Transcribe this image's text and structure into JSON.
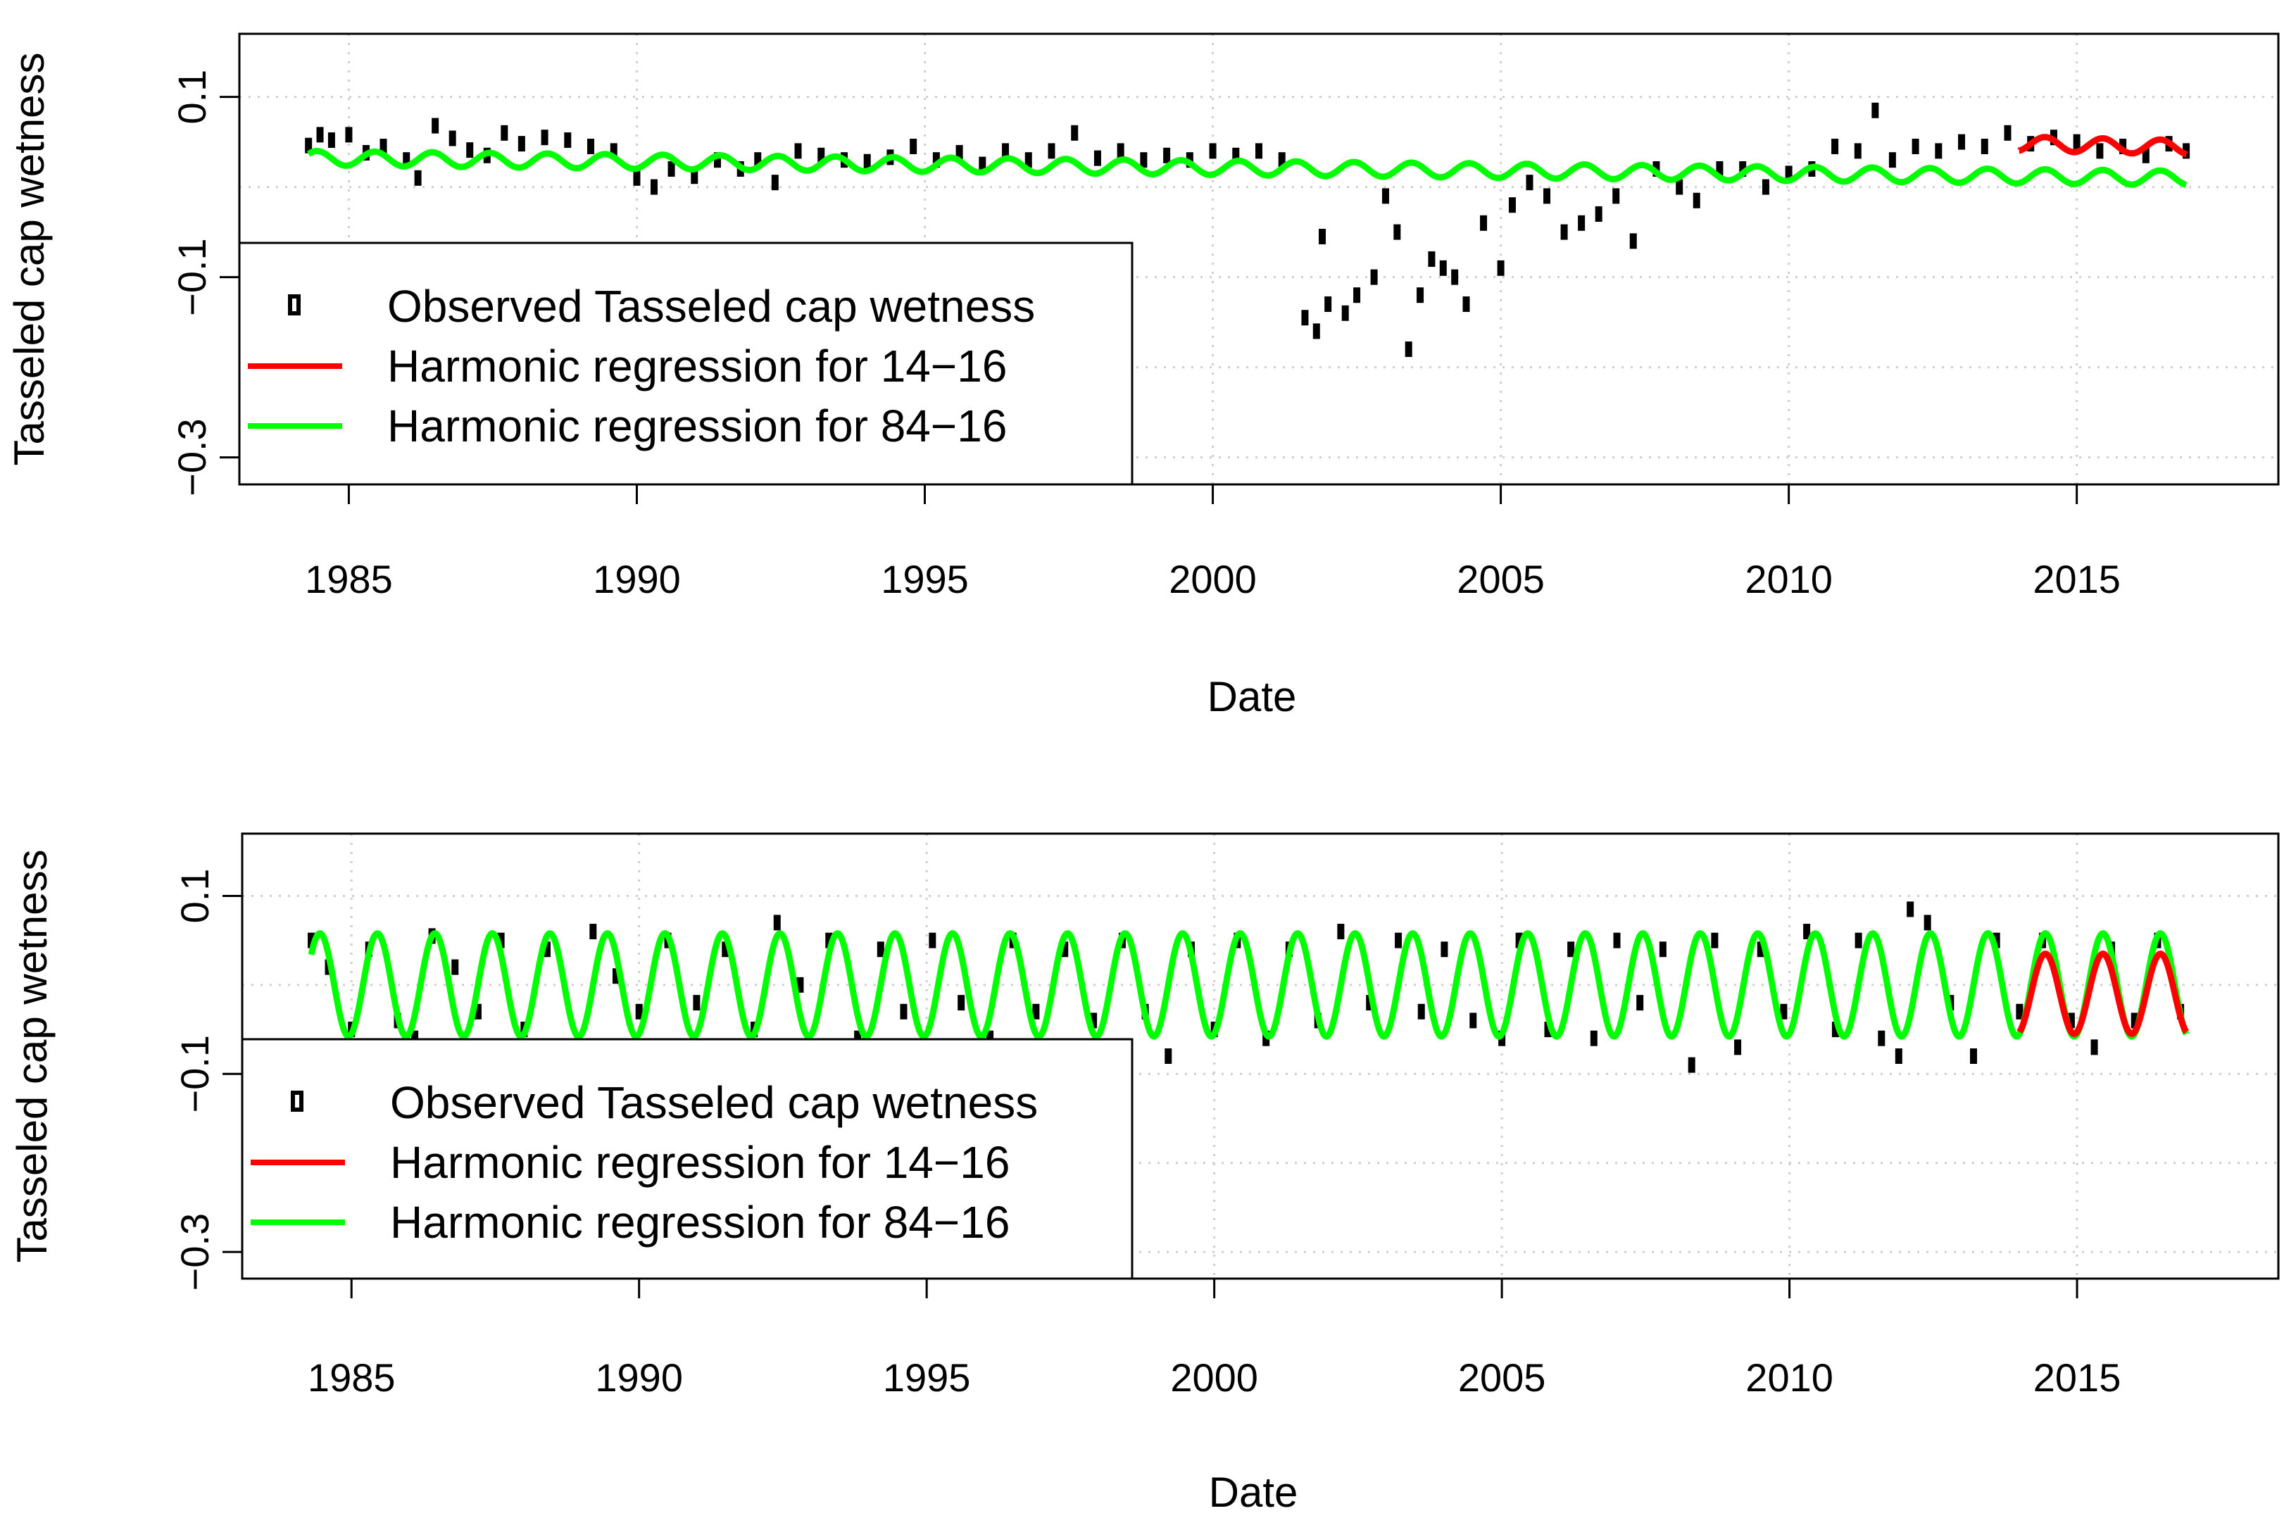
{
  "chart_data": [
    {
      "type": "scatter",
      "panel": "top",
      "xlabel": "Date",
      "ylabel": "Tasseled cap wetness",
      "xlim": [
        1983.1,
        2018.5
      ],
      "ylim": [
        -0.33,
        0.17
      ],
      "xticks": [
        1985,
        1990,
        1995,
        2000,
        2005,
        2010,
        2015
      ],
      "xtick_labels": [
        "1985",
        "1990",
        "1995",
        "2000",
        "2005",
        "2010",
        "2015"
      ],
      "yticks": [
        0.1,
        -0.1,
        -0.3
      ],
      "ytick_labels": [
        "0.1",
        "−0.1",
        "−0.3"
      ],
      "grid": true,
      "legend": {
        "position": "left-lower",
        "entries": [
          {
            "label": "Observed Tasseled cap wetness",
            "marker": "rect",
            "color": "#000000"
          },
          {
            "label": "Harmonic regression for 14−16",
            "marker": "line",
            "color": "#ff0000"
          },
          {
            "label": "Harmonic regression for 84−16",
            "marker": "line",
            "color": "#00ff00"
          }
        ]
      },
      "series": [
        {
          "name": "Observed Tasseled cap wetness",
          "kind": "points",
          "color": "#000000",
          "points": [
            [
              1984.3,
              0.046
            ],
            [
              1984.5,
              0.058
            ],
            [
              1984.7,
              0.052
            ],
            [
              1985.0,
              0.058
            ],
            [
              1985.3,
              0.038
            ],
            [
              1985.6,
              0.045
            ],
            [
              1986.0,
              0.03
            ],
            [
              1986.2,
              0.01
            ],
            [
              1986.5,
              0.068
            ],
            [
              1986.8,
              0.054
            ],
            [
              1987.1,
              0.041
            ],
            [
              1987.4,
              0.035
            ],
            [
              1987.7,
              0.06
            ],
            [
              1988.0,
              0.048
            ],
            [
              1988.4,
              0.055
            ],
            [
              1988.8,
              0.052
            ],
            [
              1989.2,
              0.045
            ],
            [
              1989.6,
              0.04
            ],
            [
              1990.0,
              0.01
            ],
            [
              1990.3,
              0.0
            ],
            [
              1990.6,
              0.02
            ],
            [
              1991.0,
              0.012
            ],
            [
              1991.4,
              0.03
            ],
            [
              1991.8,
              0.02
            ],
            [
              1992.1,
              0.03
            ],
            [
              1992.4,
              0.005
            ],
            [
              1992.8,
              0.04
            ],
            [
              1993.2,
              0.035
            ],
            [
              1993.6,
              0.03
            ],
            [
              1994.0,
              0.028
            ],
            [
              1994.4,
              0.033
            ],
            [
              1994.8,
              0.045
            ],
            [
              1995.2,
              0.03
            ],
            [
              1995.6,
              0.038
            ],
            [
              1996.0,
              0.025
            ],
            [
              1996.4,
              0.04
            ],
            [
              1996.8,
              0.03
            ],
            [
              1997.2,
              0.04
            ],
            [
              1997.6,
              0.06
            ],
            [
              1998.0,
              0.032
            ],
            [
              1998.4,
              0.04
            ],
            [
              1998.8,
              0.03
            ],
            [
              1999.2,
              0.035
            ],
            [
              1999.6,
              0.03
            ],
            [
              2000.0,
              0.04
            ],
            [
              2000.4,
              0.035
            ],
            [
              2000.8,
              0.04
            ],
            [
              2001.2,
              0.03
            ],
            [
              2001.6,
              -0.145
            ],
            [
              2001.8,
              -0.16
            ],
            [
              2001.9,
              -0.055
            ],
            [
              2002.0,
              -0.13
            ],
            [
              2002.3,
              -0.14
            ],
            [
              2002.5,
              -0.12
            ],
            [
              2002.8,
              -0.1
            ],
            [
              2003.0,
              -0.01
            ],
            [
              2003.2,
              -0.05
            ],
            [
              2003.4,
              -0.18
            ],
            [
              2003.6,
              -0.12
            ],
            [
              2003.8,
              -0.08
            ],
            [
              2004.0,
              -0.09
            ],
            [
              2004.2,
              -0.1
            ],
            [
              2004.4,
              -0.13
            ],
            [
              2004.7,
              -0.04
            ],
            [
              2005.0,
              -0.09
            ],
            [
              2005.2,
              -0.02
            ],
            [
              2005.5,
              0.005
            ],
            [
              2005.8,
              -0.01
            ],
            [
              2006.1,
              -0.05
            ],
            [
              2006.4,
              -0.04
            ],
            [
              2006.7,
              -0.03
            ],
            [
              2007.0,
              -0.01
            ],
            [
              2007.3,
              -0.06
            ],
            [
              2007.7,
              0.02
            ],
            [
              2008.1,
              0.0
            ],
            [
              2008.4,
              -0.015
            ],
            [
              2008.8,
              0.02
            ],
            [
              2009.2,
              0.02
            ],
            [
              2009.6,
              0.0
            ],
            [
              2010.0,
              0.015
            ],
            [
              2010.4,
              0.02
            ],
            [
              2010.8,
              0.045
            ],
            [
              2011.2,
              0.04
            ],
            [
              2011.5,
              0.085
            ],
            [
              2011.8,
              0.03
            ],
            [
              2012.2,
              0.045
            ],
            [
              2012.6,
              0.04
            ],
            [
              2013.0,
              0.05
            ],
            [
              2013.4,
              0.045
            ],
            [
              2013.8,
              0.06
            ],
            [
              2014.2,
              0.048
            ],
            [
              2014.6,
              0.055
            ],
            [
              2015.0,
              0.05
            ],
            [
              2015.4,
              0.04
            ],
            [
              2015.8,
              0.045
            ],
            [
              2016.2,
              0.035
            ],
            [
              2016.6,
              0.048
            ],
            [
              2016.9,
              0.04
            ]
          ]
        },
        {
          "name": "Harmonic regression for 84−16",
          "kind": "harmonic",
          "color": "#00ff00",
          "from": 1984.3,
          "to": 2016.9,
          "mean_start": 0.032,
          "mean_end": 0.01,
          "amplitude": 0.008
        },
        {
          "name": "Harmonic regression for 14−16",
          "kind": "harmonic",
          "color": "#ff0000",
          "from": 2014.0,
          "to": 2016.9,
          "mean_start": 0.048,
          "mean_end": 0.044,
          "amplitude": 0.008
        }
      ]
    },
    {
      "type": "scatter",
      "panel": "bottom",
      "xlabel": "Date",
      "ylabel": "Tasseled cap wetness",
      "xlim": [
        1983.1,
        2018.5
      ],
      "ylim": [
        -0.33,
        0.17
      ],
      "xticks": [
        1985,
        1990,
        1995,
        2000,
        2005,
        2010,
        2015
      ],
      "xtick_labels": [
        "1985",
        "1990",
        "1995",
        "2000",
        "2005",
        "2010",
        "2015"
      ],
      "yticks": [
        0.1,
        -0.1,
        -0.3
      ],
      "ytick_labels": [
        "0.1",
        "−0.1",
        "−0.3"
      ],
      "grid": true,
      "legend": {
        "position": "left-lower",
        "entries": [
          {
            "label": "Observed Tasseled cap wetness",
            "marker": "rect",
            "color": "#000000"
          },
          {
            "label": "Harmonic regression for 14−16",
            "marker": "line",
            "color": "#ff0000"
          },
          {
            "label": "Harmonic regression for 84−16",
            "marker": "line",
            "color": "#00ff00"
          }
        ]
      },
      "series": [
        {
          "name": "Observed Tasseled cap wetness",
          "kind": "points",
          "color": "#000000",
          "points": [
            [
              1984.3,
              0.05
            ],
            [
              1984.6,
              0.02
            ],
            [
              1985.0,
              -0.05
            ],
            [
              1985.3,
              0.04
            ],
            [
              1985.8,
              -0.04
            ],
            [
              1986.1,
              -0.06
            ],
            [
              1986.4,
              0.055
            ],
            [
              1986.8,
              0.02
            ],
            [
              1987.2,
              -0.03
            ],
            [
              1987.6,
              0.05
            ],
            [
              1988.0,
              -0.05
            ],
            [
              1988.4,
              0.04
            ],
            [
              1988.9,
              -0.07
            ],
            [
              1989.2,
              0.06
            ],
            [
              1989.6,
              0.01
            ],
            [
              1990.0,
              -0.03
            ],
            [
              1990.5,
              0.05
            ],
            [
              1991.0,
              -0.02
            ],
            [
              1991.5,
              0.04
            ],
            [
              1992.0,
              -0.05
            ],
            [
              1992.4,
              0.07
            ],
            [
              1992.8,
              0.0
            ],
            [
              1993.3,
              0.05
            ],
            [
              1993.8,
              -0.06
            ],
            [
              1994.2,
              0.04
            ],
            [
              1994.6,
              -0.03
            ],
            [
              1995.1,
              0.05
            ],
            [
              1995.6,
              -0.02
            ],
            [
              1996.1,
              -0.06
            ],
            [
              1996.5,
              0.05
            ],
            [
              1996.9,
              -0.03
            ],
            [
              1997.4,
              0.04
            ],
            [
              1997.9,
              -0.04
            ],
            [
              1998.4,
              0.05
            ],
            [
              1998.8,
              -0.03
            ],
            [
              1999.2,
              -0.08
            ],
            [
              1999.6,
              0.04
            ],
            [
              2000.0,
              -0.05
            ],
            [
              2000.4,
              0.05
            ],
            [
              2000.9,
              -0.06
            ],
            [
              2001.3,
              0.04
            ],
            [
              2001.8,
              -0.04
            ],
            [
              2002.2,
              0.06
            ],
            [
              2002.7,
              -0.02
            ],
            [
              2003.2,
              0.05
            ],
            [
              2003.6,
              -0.03
            ],
            [
              2004.0,
              0.04
            ],
            [
              2004.5,
              -0.04
            ],
            [
              2005.0,
              -0.06
            ],
            [
              2005.3,
              0.05
            ],
            [
              2005.8,
              -0.05
            ],
            [
              2006.2,
              0.04
            ],
            [
              2006.6,
              -0.06
            ],
            [
              2007.0,
              0.05
            ],
            [
              2007.4,
              -0.02
            ],
            [
              2007.8,
              0.04
            ],
            [
              2008.3,
              -0.09
            ],
            [
              2008.7,
              0.05
            ],
            [
              2009.1,
              -0.07
            ],
            [
              2009.5,
              0.04
            ],
            [
              2009.9,
              -0.03
            ],
            [
              2010.3,
              0.06
            ],
            [
              2010.8,
              -0.05
            ],
            [
              2011.2,
              0.05
            ],
            [
              2011.6,
              -0.06
            ],
            [
              2011.9,
              -0.08
            ],
            [
              2012.1,
              0.085
            ],
            [
              2012.4,
              0.07
            ],
            [
              2012.8,
              -0.02
            ],
            [
              2013.2,
              -0.08
            ],
            [
              2013.6,
              0.05
            ],
            [
              2014.0,
              -0.03
            ],
            [
              2014.4,
              0.05
            ],
            [
              2014.9,
              -0.04
            ],
            [
              2015.3,
              -0.07
            ],
            [
              2015.6,
              0.04
            ],
            [
              2016.0,
              -0.04
            ],
            [
              2016.4,
              0.05
            ],
            [
              2016.8,
              -0.03
            ]
          ]
        },
        {
          "name": "Harmonic regression for 84−16",
          "kind": "harmonic",
          "color": "#00ff00",
          "from": 1984.3,
          "to": 2016.9,
          "mean_start": 0.0,
          "mean_end": 0.0,
          "amplitude": 0.058
        },
        {
          "name": "Harmonic regression for 14−16",
          "kind": "harmonic",
          "color": "#ff0000",
          "from": 2014.0,
          "to": 2016.9,
          "mean_start": -0.01,
          "mean_end": -0.01,
          "amplitude": 0.045
        }
      ]
    }
  ]
}
